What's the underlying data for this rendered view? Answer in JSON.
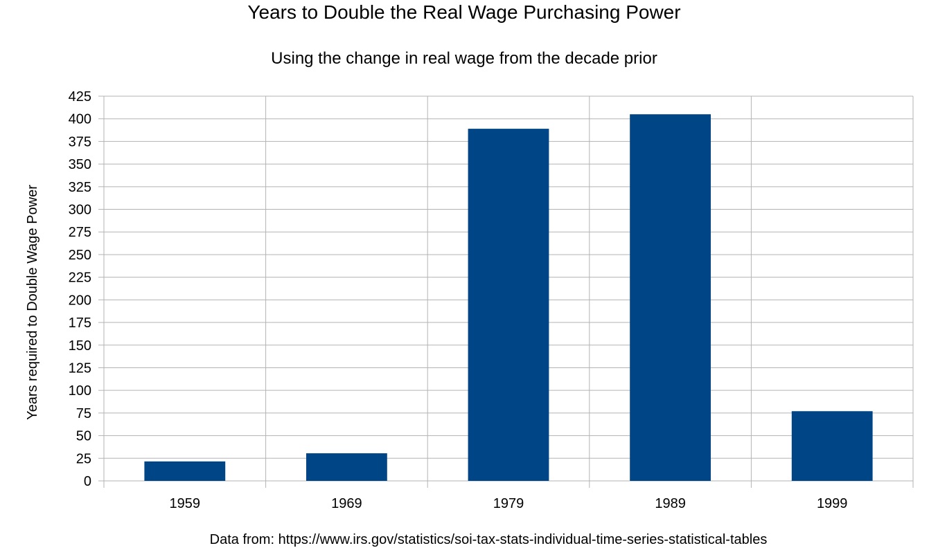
{
  "chart_data": {
    "type": "bar",
    "title": "Years to Double the Real Wage Purchasing Power",
    "subtitle": "Using the change in real wage from the decade prior",
    "xlabel": "",
    "ylabel": "Years required to Double Wage Power",
    "categories": [
      "1959",
      "1969",
      "1979",
      "1989",
      "1999"
    ],
    "series": [
      {
        "values": [
          21.5,
          30.5,
          389,
          405,
          77
        ],
        "color": "#004586"
      }
    ],
    "ylim": [
      0,
      425
    ],
    "yticks": [
      0,
      25,
      50,
      75,
      100,
      125,
      150,
      175,
      200,
      225,
      250,
      275,
      300,
      325,
      350,
      375,
      400,
      425
    ],
    "grid": true,
    "legend": "none",
    "source_note": "Data from: https://www.irs.gov/statistics/soi-tax-stats-individual-time-series-statistical-tables"
  },
  "colors": {
    "grid": "#b3b3b3",
    "bar": "#004586",
    "text": "#000000"
  }
}
